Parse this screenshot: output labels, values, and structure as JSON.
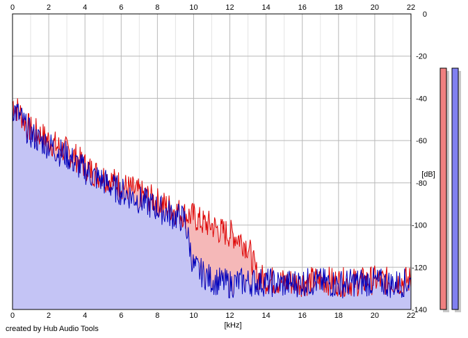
{
  "chart_data": {
    "type": "area",
    "xlabel": "[kHz]",
    "ylabel": "[dB]",
    "xlim": [
      0,
      22
    ],
    "ylim": [
      -140,
      0
    ],
    "x_ticks": [
      0,
      2,
      4,
      6,
      8,
      10,
      12,
      14,
      16,
      18,
      20,
      22
    ],
    "y_ticks": [
      0,
      -20,
      -40,
      -60,
      -80,
      -100,
      -120,
      -140
    ],
    "grid": true,
    "series": [
      {
        "color": "#dd0000",
        "fill": "#f5b8b8",
        "x": [
          0,
          0.25,
          0.5,
          0.75,
          1,
          1.5,
          2,
          2.5,
          3,
          3.5,
          4,
          4.5,
          5,
          5.5,
          6,
          6.5,
          7,
          7.5,
          8,
          8.5,
          9,
          9.5,
          10,
          10.5,
          11,
          11.5,
          12,
          12.5,
          13,
          13.5,
          14,
          15,
          16,
          17,
          18,
          19,
          20,
          21,
          22
        ],
        "values": [
          -42,
          -45,
          -48,
          -52,
          -55,
          -57,
          -60,
          -63,
          -65,
          -68,
          -72,
          -75,
          -77,
          -79,
          -81,
          -83,
          -85,
          -87,
          -89,
          -91,
          -93,
          -95,
          -96,
          -99,
          -100,
          -103,
          -104,
          -106,
          -110,
          -124,
          -126,
          -127,
          -127,
          -126,
          -127,
          -127,
          -126,
          -127,
          -126
        ]
      },
      {
        "color": "#0000bb",
        "fill": "#c4c4f5",
        "x": [
          0,
          0.25,
          0.5,
          0.75,
          1,
          1.5,
          2,
          2.5,
          3,
          3.5,
          4,
          4.5,
          5,
          5.5,
          6,
          6.5,
          7,
          7.5,
          8,
          8.5,
          9,
          9.5,
          10,
          10.5,
          11,
          11.5,
          12,
          12.5,
          13,
          13.5,
          14,
          15,
          16,
          17,
          18,
          19,
          20,
          21,
          22
        ],
        "values": [
          -44,
          -47,
          -50,
          -54,
          -57,
          -60,
          -62,
          -65,
          -67,
          -71,
          -74,
          -77,
          -79,
          -82,
          -84,
          -86,
          -88,
          -90,
          -92,
          -94,
          -96,
          -97,
          -120,
          -123,
          -126,
          -127,
          -128,
          -127,
          -127,
          -127,
          -127,
          -128,
          -127,
          -127,
          -128,
          -127,
          -127,
          -128,
          -127
        ]
      }
    ]
  },
  "meters": [
    {
      "color": "#f08080",
      "level": 1.0
    },
    {
      "color": "#8080f0",
      "level": 1.0
    }
  ],
  "credit": "created by Hub Audio Tools"
}
